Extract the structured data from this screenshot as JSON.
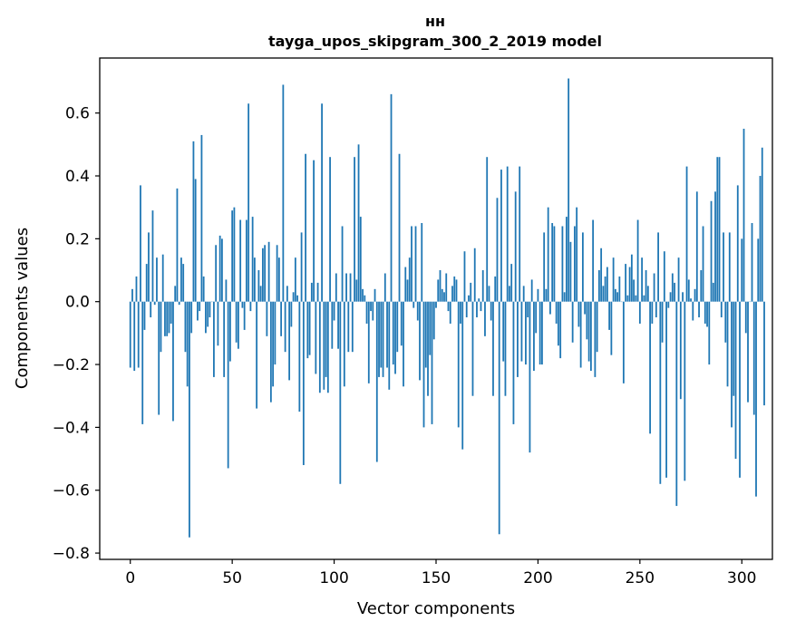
{
  "chart_data": {
    "type": "bar",
    "title": "нн",
    "subtitle": "tayga_upos_skipgram_300_2_2019 model",
    "xlabel": "Vector components",
    "ylabel": "Components values",
    "xlim": [
      -15,
      315
    ],
    "ylim": [
      -0.82,
      0.775
    ],
    "xticks": [
      0,
      50,
      100,
      150,
      200,
      250,
      300
    ],
    "xtick_labels": [
      "0",
      "50",
      "100",
      "150",
      "200",
      "250",
      "300"
    ],
    "yticks": [
      -0.8,
      -0.6,
      -0.4,
      -0.2,
      0.0,
      0.2,
      0.4,
      0.6
    ],
    "ytick_labels": [
      "−0.8",
      "−0.6",
      "−0.4",
      "−0.2",
      "0.0",
      "0.2",
      "0.4",
      "0.6"
    ],
    "grid": false,
    "bar_color": "#1f77b4",
    "series": [
      {
        "values": [
          -0.21,
          0.04,
          -0.22,
          0.08,
          -0.21,
          0.37,
          -0.39,
          -0.09,
          0.12,
          0.22,
          -0.05,
          0.29,
          -0.01,
          0.14,
          -0.36,
          -0.16,
          0.15,
          -0.11,
          -0.11,
          -0.1,
          -0.07,
          -0.38,
          0.05,
          0.36,
          -0.01,
          0.14,
          0.12,
          -0.16,
          -0.27,
          -0.75,
          -0.1,
          0.51,
          0.39,
          -0.06,
          -0.03,
          0.53,
          0.08,
          -0.1,
          -0.08,
          -0.05,
          0.0,
          -0.24,
          0.18,
          -0.14,
          0.21,
          0.2,
          -0.24,
          0.07,
          -0.53,
          -0.19,
          0.29,
          0.3,
          -0.13,
          -0.15,
          0.26,
          -0.02,
          -0.09,
          0.26,
          0.63,
          -0.03,
          0.27,
          0.14,
          -0.34,
          0.1,
          0.05,
          0.17,
          0.18,
          -0.11,
          0.19,
          -0.32,
          -0.27,
          -0.2,
          0.18,
          0.14,
          -0.11,
          0.69,
          -0.16,
          0.05,
          -0.25,
          -0.08,
          0.03,
          0.14,
          0.02,
          -0.35,
          0.22,
          -0.52,
          0.47,
          -0.18,
          -0.17,
          0.06,
          0.45,
          -0.23,
          0.06,
          -0.29,
          0.63,
          -0.28,
          -0.24,
          -0.29,
          0.46,
          -0.15,
          -0.06,
          0.09,
          -0.15,
          -0.58,
          0.24,
          -0.27,
          0.09,
          -0.16,
          0.09,
          -0.16,
          0.46,
          0.07,
          0.5,
          0.27,
          0.04,
          0.02,
          -0.07,
          -0.26,
          -0.03,
          -0.06,
          0.04,
          -0.51,
          -0.24,
          -0.21,
          -0.24,
          0.09,
          -0.21,
          -0.28,
          0.66,
          -0.2,
          -0.23,
          -0.16,
          0.47,
          -0.14,
          -0.27,
          0.11,
          0.07,
          0.14,
          0.24,
          -0.02,
          0.24,
          -0.06,
          -0.25,
          0.25,
          -0.4,
          -0.21,
          -0.3,
          -0.17,
          -0.39,
          -0.12,
          -0.02,
          0.07,
          0.1,
          0.04,
          0.03,
          0.09,
          -0.03,
          -0.07,
          0.05,
          0.08,
          0.07,
          -0.4,
          -0.07,
          -0.47,
          0.16,
          -0.05,
          0.02,
          0.06,
          -0.3,
          0.17,
          -0.05,
          0.01,
          -0.03,
          0.1,
          -0.11,
          0.46,
          0.05,
          -0.06,
          -0.3,
          0.08,
          0.33,
          -0.74,
          0.42,
          -0.19,
          -0.3,
          0.43,
          0.05,
          0.12,
          -0.39,
          0.35,
          -0.24,
          0.43,
          -0.19,
          0.05,
          -0.2,
          -0.05,
          -0.48,
          0.07,
          -0.22,
          -0.1,
          0.04,
          -0.2,
          -0.2,
          0.22,
          0.04,
          0.3,
          -0.04,
          0.25,
          0.24,
          -0.07,
          -0.14,
          -0.18,
          0.24,
          0.03,
          0.27,
          0.71,
          0.19,
          -0.13,
          0.24,
          0.3,
          -0.08,
          -0.21,
          0.22,
          -0.04,
          -0.12,
          -0.19,
          -0.22,
          0.26,
          -0.24,
          -0.16,
          0.1,
          0.17,
          0.05,
          0.08,
          0.11,
          -0.09,
          -0.17,
          0.14,
          0.04,
          0.03,
          0.08,
          0.0,
          -0.26,
          0.12,
          0.02,
          0.11,
          0.15,
          0.07,
          0.02,
          0.26,
          -0.07,
          0.14,
          0.02,
          0.1,
          0.05,
          -0.42,
          -0.07,
          0.09,
          -0.05,
          0.22,
          -0.58,
          -0.13,
          0.16,
          -0.56,
          -0.02,
          0.03,
          0.09,
          0.06,
          -0.65,
          0.14,
          -0.31,
          0.03,
          -0.57,
          0.43,
          0.07,
          0.01,
          -0.06,
          0.04,
          0.35,
          -0.05,
          0.1,
          0.24,
          -0.07,
          -0.08,
          -0.2,
          0.32,
          0.06,
          0.35,
          0.46,
          0.46,
          -0.05,
          0.22,
          -0.13,
          -0.27,
          0.22,
          -0.4,
          -0.3,
          -0.5,
          0.37,
          -0.56,
          0.2,
          0.55,
          -0.1,
          -0.32,
          0.0,
          0.25,
          -0.36,
          -0.62,
          0.2,
          0.4,
          0.49,
          -0.33
        ]
      }
    ]
  }
}
